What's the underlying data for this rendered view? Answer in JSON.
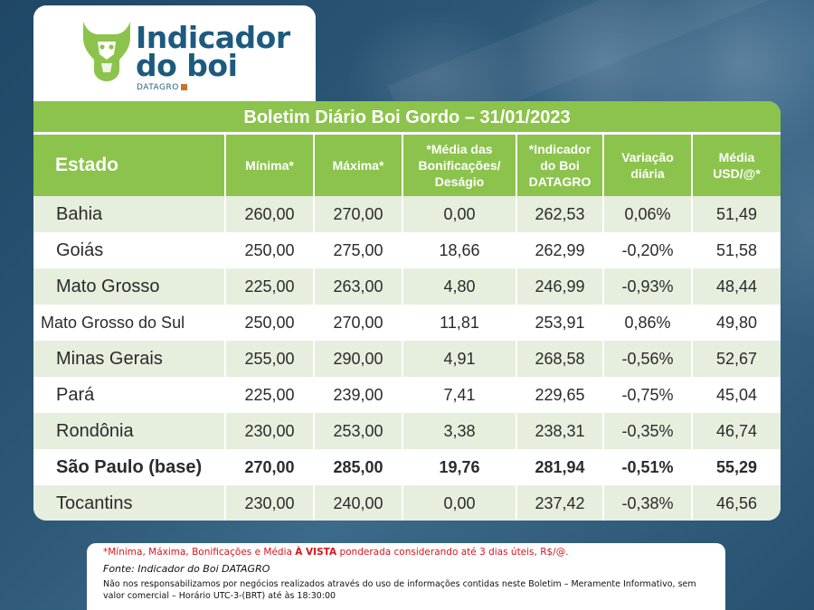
{
  "logo": {
    "title_line1": "Indicador",
    "title_line2": "do boi",
    "subtitle": "DATAGRO",
    "icon": "bull-head-icon",
    "accent_green": "#8cc34c",
    "accent_blue": "#1d5b7e"
  },
  "bulletin": {
    "title": "Boletim Diário Boi Gordo – 31/01/2023",
    "headers": {
      "state": "Estado",
      "min": "Mínima*",
      "max": "Máxima*",
      "bonus_line1": "*Média das",
      "bonus_line2": "Bonificações/",
      "bonus_line3": "Deságio",
      "indicator_line1": "*Indicador",
      "indicator_line2": "do Boi",
      "indicator_line3": "DATAGRO",
      "variation_line1": "Variação",
      "variation_line2": "diária",
      "usd_line1": "Média",
      "usd_line2": "USD/@*"
    },
    "rows": [
      {
        "state": "Bahia",
        "min": "260,00",
        "max": "270,00",
        "bonus": "0,00",
        "indicator": "262,53",
        "variation": "0,06%",
        "usd": "51,49"
      },
      {
        "state": "Goiás",
        "min": "250,00",
        "max": "275,00",
        "bonus": "18,66",
        "indicator": "262,99",
        "variation": "-0,20%",
        "usd": "51,58"
      },
      {
        "state": "Mato Grosso",
        "min": "225,00",
        "max": "263,00",
        "bonus": "4,80",
        "indicator": "246,99",
        "variation": "-0,93%",
        "usd": "48,44"
      },
      {
        "state": "Mato Grosso do Sul",
        "min": "250,00",
        "max": "270,00",
        "bonus": "11,81",
        "indicator": "253,91",
        "variation": "0,86%",
        "usd": "49,80"
      },
      {
        "state": "Minas Gerais",
        "min": "255,00",
        "max": "290,00",
        "bonus": "4,91",
        "indicator": "268,58",
        "variation": "-0,56%",
        "usd": "52,67"
      },
      {
        "state": "Pará",
        "min": "225,00",
        "max": "239,00",
        "bonus": "7,41",
        "indicator": "229,65",
        "variation": "-0,75%",
        "usd": "45,04"
      },
      {
        "state": "Rondônia",
        "min": "230,00",
        "max": "253,00",
        "bonus": "3,38",
        "indicator": "238,31",
        "variation": "-0,35%",
        "usd": "46,74"
      },
      {
        "state": "São Paulo (base)",
        "min": "270,00",
        "max": "285,00",
        "bonus": "19,76",
        "indicator": "281,94",
        "variation": "-0,51%",
        "usd": "55,29"
      },
      {
        "state": "Tocantins",
        "min": "230,00",
        "max": "240,00",
        "bonus": "0,00",
        "indicator": "237,42",
        "variation": "-0,38%",
        "usd": "46,56"
      }
    ]
  },
  "footer": {
    "note_prefix": "*Mínima, Máxima, Bonificações e Média ",
    "note_bold": "À VISTA",
    "note_suffix": " ponderada considerando até 3 dias úteis, R$/@.",
    "source": "Fonte: Indicador do Boi DATAGRO",
    "disclaimer": "Não nos responsabilizamos por negócios realizados através do uso de informações contidas neste Boletim – Meramente Informativo, sem valor comercial – Horário UTC-3-(BRT) até às 18:30:00"
  }
}
